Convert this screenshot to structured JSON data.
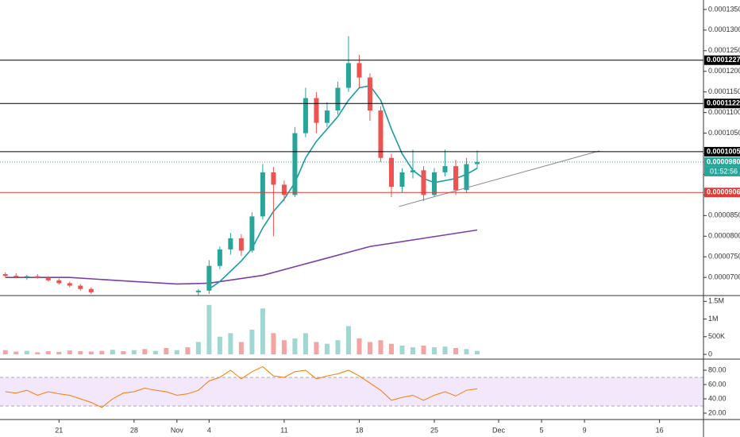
{
  "chart_data": [
    {
      "type": "candlestick",
      "xlim": [
        15.5,
        81.1
      ],
      "ylim": [
        6.56e-05,
        0.0001373
      ],
      "yticks": [
        {
          "value": 7e-05,
          "label": "0.0000700"
        },
        {
          "value": 7.5e-05,
          "label": "0.0000750"
        },
        {
          "value": 8e-05,
          "label": "0.0000800"
        },
        {
          "value": 8.5e-05,
          "label": "0.0000850"
        },
        {
          "value": 9e-05,
          "label": "0.0000900"
        },
        {
          "value": 9.5e-05,
          "label": "0.0000950"
        },
        {
          "value": 0.0001,
          "label": "0.0001000"
        },
        {
          "value": 0.000105,
          "label": "0.0001050"
        },
        {
          "value": 0.00011,
          "label": "0.0001100"
        },
        {
          "value": 0.000115,
          "label": "0.0001150"
        },
        {
          "value": 0.00012,
          "label": "0.0001200"
        },
        {
          "value": 0.000125,
          "label": "0.0001250"
        },
        {
          "value": 0.00013,
          "label": "0.0001300"
        },
        {
          "value": 0.000135,
          "label": "0.0001350"
        }
      ],
      "up_color": "#26a69a",
      "down_color": "#ef5350",
      "x": [
        16,
        17,
        18,
        19,
        20,
        21,
        22,
        23,
        24,
        34,
        35,
        36,
        37,
        38,
        39,
        40,
        41,
        42,
        43,
        44,
        45,
        46,
        47,
        48,
        49,
        50,
        51,
        52,
        53,
        54,
        55,
        56,
        57,
        58,
        59,
        60
      ],
      "open": [
        7.08e-05,
        7.04e-05,
        7.01e-05,
        7.03e-05,
        6.99e-05,
        6.93e-05,
        6.86e-05,
        6.8e-05,
        6.72e-05,
        6.64e-05,
        6.68e-05,
        7.28e-05,
        7.68e-05,
        7.95e-05,
        7.65e-05,
        8.48e-05,
        9.55e-05,
        9.25e-05,
        9e-05,
        0.000105,
        0.0001135,
        0.0001075,
        0.0001105,
        0.000116,
        0.000122,
        0.0001185,
        0.0001105,
        9.9e-05,
        9.2e-05,
        9.55e-05,
        9.6e-05,
        9e-05,
        9.55e-05,
        9.7e-05,
        9.12e-05,
        9.75e-05
      ],
      "high": [
        7.12e-05,
        7.1e-05,
        7.06e-05,
        7.08e-05,
        7.03e-05,
        6.97e-05,
        6.9e-05,
        6.84e-05,
        6.76e-05,
        6.72e-05,
        7.42e-05,
        7.75e-05,
        8.08e-05,
        8.05e-05,
        8.58e-05,
        9.75e-05,
        9.68e-05,
        9.35e-05,
        0.0001065,
        0.000116,
        0.000115,
        0.0001125,
        0.0001175,
        0.0001285,
        0.000124,
        0.0001195,
        0.0001115,
        0.0001,
        9.65e-05,
        0.000101,
        9.7e-05,
        9.65e-05,
        0.000101,
        9.85e-05,
        9.9e-05,
        0.0001008
      ],
      "low": [
        7e-05,
        6.98e-05,
        6.94e-05,
        6.97e-05,
        6.9e-05,
        6.83e-05,
        6.76e-05,
        6.68e-05,
        6.6e-05,
        6.56e-05,
        6.6e-05,
        7.2e-05,
        7.55e-05,
        7.52e-05,
        7.6e-05,
        8.4e-05,
        8e-05,
        8.85e-05,
        8.95e-05,
        0.000104,
        0.000105,
        0.0001065,
        0.0001095,
        0.000115,
        0.000116,
        0.000108,
        9.8e-05,
        8.95e-05,
        9.05e-05,
        9.4e-05,
        8.85e-05,
        8.95e-05,
        9.45e-05,
        9e-05,
        9.05e-05,
        9.65e-05
      ],
      "close": [
        7.04e-05,
        7.01e-05,
        7.03e-05,
        6.99e-05,
        6.93e-05,
        6.86e-05,
        6.8e-05,
        6.72e-05,
        6.64e-05,
        6.68e-05,
        7.28e-05,
        7.68e-05,
        7.95e-05,
        7.65e-05,
        8.48e-05,
        9.55e-05,
        9.25e-05,
        9e-05,
        0.000105,
        0.0001135,
        0.0001075,
        0.0001105,
        0.000116,
        0.000122,
        0.0001185,
        0.0001105,
        9.9e-05,
        9.2e-05,
        9.55e-05,
        9.6e-05,
        9e-05,
        9.55e-05,
        9.7e-05,
        9.12e-05,
        9.75e-05,
        9.8e-05
      ],
      "series": [
        {
          "color": "#7b3fa8",
          "x": [
            16,
            22,
            28,
            32,
            35,
            40,
            45,
            50,
            55,
            60
          ],
          "values": [
            7e-05,
            7e-05,
            6.9e-05,
            6.84e-05,
            6.86e-05,
            7.05e-05,
            7.4e-05,
            7.75e-05,
            7.95e-05,
            8.15e-05
          ]
        },
        {
          "color": "#1b9aa8",
          "x": [
            35,
            36,
            37,
            38,
            39,
            40,
            41,
            42,
            43,
            44,
            45,
            46,
            47,
            48,
            49,
            50,
            51,
            52,
            53,
            54,
            55,
            56,
            57,
            58,
            59,
            60
          ],
          "values": [
            6.72e-05,
            6.9e-05,
            7.15e-05,
            7.4e-05,
            7.7e-05,
            8.2e-05,
            8.6e-05,
            8.9e-05,
            9.3e-05,
            9.9e-05,
            0.000103,
            0.000106,
            0.000109,
            0.000113,
            0.000116,
            0.0001165,
            0.000113,
            0.000106,
            0.0001,
            9.6e-05,
            9.4e-05,
            9.3e-05,
            9.35e-05,
            9.4e-05,
            9.5e-05,
            9.65e-05
          ]
        }
      ],
      "levels": [
        {
          "value": 0.0001227,
          "label": "0.0001227",
          "color": "#000000"
        },
        {
          "value": 0.0001122,
          "label": "0.0001122",
          "color": "#000000"
        },
        {
          "value": 0.0001005,
          "label": "0.0001005",
          "color": "#000000"
        },
        {
          "value": 9.8e-05,
          "label": "0.0000980",
          "color": "#26a69a",
          "dotted": true
        },
        {
          "value": 9.06e-05,
          "label": "0.0000906",
          "color": "#e53935"
        }
      ],
      "countdown": "01:52:56",
      "trendline": {
        "x": [
          52.7,
          71.4
        ],
        "y": [
          8.72e-05,
          0.0001007
        ],
        "color": "#888888"
      }
    },
    {
      "type": "bar",
      "xlim": [
        15.5,
        81.1
      ],
      "ylim": [
        -135000,
        1620000
      ],
      "yticks": [
        0,
        {
          "value": 500000,
          "label": "500K"
        },
        {
          "value": 1000000,
          "label": "1M"
        },
        {
          "value": 1500000,
          "label": "1.5M"
        }
      ],
      "x": [
        16,
        17,
        18,
        19,
        20,
        21,
        22,
        23,
        24,
        25,
        26,
        27,
        28,
        29,
        30,
        31,
        32,
        33,
        34,
        35,
        36,
        37,
        38,
        39,
        40,
        41,
        42,
        43,
        44,
        45,
        46,
        47,
        48,
        49,
        50,
        51,
        52,
        53,
        54,
        55,
        56,
        57,
        58,
        59,
        60
      ],
      "values": [
        120000,
        80000,
        100000,
        60000,
        90000,
        70000,
        110000,
        90000,
        80000,
        100000,
        130000,
        90000,
        120000,
        150000,
        100000,
        180000,
        120000,
        200000,
        350000,
        1400000,
        500000,
        600000,
        350000,
        700000,
        1300000,
        600000,
        400000,
        450000,
        600000,
        350000,
        300000,
        400000,
        800000,
        450000,
        350000,
        400000,
        300000,
        250000,
        200000,
        250000,
        200000,
        220000,
        180000,
        150000,
        100000
      ],
      "colors": [
        "#f4a5a3",
        "#f4a5a3",
        "#9fd8d2",
        "#f4a5a3",
        "#f4a5a3",
        "#f4a5a3",
        "#f4a5a3",
        "#f4a5a3",
        "#f4a5a3",
        "#f4a5a3",
        "#9fd8d2",
        "#f4a5a3",
        "#9fd8d2",
        "#f4a5a3",
        "#9fd8d2",
        "#f4a5a3",
        "#9fd8d2",
        "#f4a5a3",
        "#9fd8d2",
        "#9fd8d2",
        "#9fd8d2",
        "#9fd8d2",
        "#f4a5a3",
        "#9fd8d2",
        "#9fd8d2",
        "#f4a5a3",
        "#f4a5a3",
        "#9fd8d2",
        "#9fd8d2",
        "#f4a5a3",
        "#9fd8d2",
        "#9fd8d2",
        "#9fd8d2",
        "#f4a5a3",
        "#f4a5a3",
        "#f4a5a3",
        "#f4a5a3",
        "#9fd8d2",
        "#9fd8d2",
        "#f4a5a3",
        "#9fd8d2",
        "#9fd8d2",
        "#f4a5a3",
        "#9fd8d2",
        "#9fd8d2"
      ]
    },
    {
      "type": "line",
      "xlim": [
        15.5,
        81.1
      ],
      "ylim": [
        11.1,
        93.3
      ],
      "xticks": [
        {
          "value": 21,
          "label": "21"
        },
        {
          "value": 28,
          "label": "28"
        },
        {
          "value": 32,
          "label": "Nov"
        },
        {
          "value": 35,
          "label": "4"
        },
        {
          "value": 42,
          "label": "11"
        },
        {
          "value": 49,
          "label": "18"
        },
        {
          "value": 56,
          "label": "25"
        },
        {
          "value": 62,
          "label": "Dec"
        },
        {
          "value": 66,
          "label": "5"
        },
        {
          "value": 70,
          "label": "9"
        },
        {
          "value": 77,
          "label": "16"
        }
      ],
      "yticks": [
        {
          "value": 20,
          "label": "20.00"
        },
        {
          "value": 40,
          "label": "40.00"
        },
        {
          "value": 60,
          "label": "60.00"
        },
        {
          "value": 80,
          "label": "80.00"
        }
      ],
      "band": [
        30,
        70
      ],
      "band_color": "#f3e8fb",
      "color": "#f57c00",
      "x": [
        16,
        17,
        18,
        19,
        20,
        21,
        22,
        23,
        24,
        25,
        26,
        27,
        28,
        29,
        30,
        31,
        32,
        33,
        34,
        35,
        36,
        37,
        38,
        39,
        40,
        41,
        42,
        43,
        44,
        45,
        46,
        47,
        48,
        49,
        50,
        51,
        52,
        53,
        54,
        55,
        56,
        57,
        58,
        59,
        60
      ],
      "values": [
        50,
        48,
        52,
        45,
        50,
        47,
        45,
        40,
        35,
        28,
        40,
        48,
        50,
        55,
        52,
        50,
        45,
        47,
        52,
        65,
        70,
        80,
        68,
        78,
        85,
        72,
        70,
        78,
        80,
        68,
        72,
        75,
        80,
        72,
        62,
        52,
        38,
        42,
        45,
        38,
        45,
        50,
        44,
        52,
        54
      ]
    }
  ]
}
